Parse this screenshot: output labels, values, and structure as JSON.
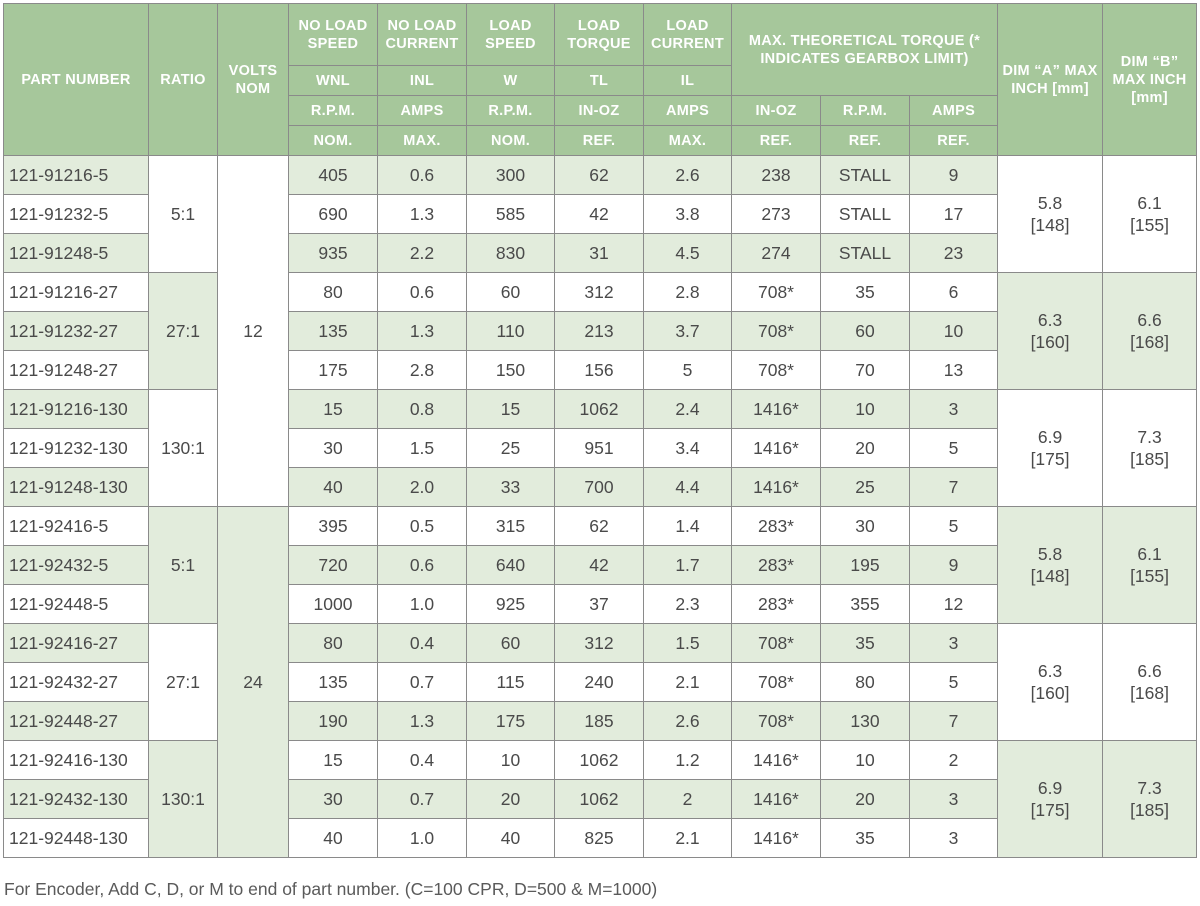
{
  "header": {
    "part_number": "PART NUMBER",
    "ratio": "RATIO",
    "volts": "VOLTS NOM",
    "no_load_speed": "NO LOAD SPEED",
    "no_load_current": "NO LOAD CURRENT",
    "load_speed": "LOAD SPEED",
    "load_torque": "LOAD TORQUE",
    "load_current": "LOAD CURRENT",
    "max_torque": "MAX. THEORETICAL TORQUE (* INDICATES GEARBOX LIMIT)",
    "dim_a": "DIM “A” MAX INCH [mm]",
    "dim_b": "DIM “B” MAX INCH [mm]",
    "row2": [
      "WNL",
      "INL",
      "W",
      "TL",
      "IL"
    ],
    "row3": [
      "R.P.M.",
      "AMPS",
      "R.P.M.",
      "IN-OZ",
      "AMPS",
      "IN-OZ",
      "R.P.M.",
      "AMPS"
    ],
    "row4": [
      "NOM.",
      "MAX.",
      "NOM.",
      "REF.",
      "MAX.",
      "REF.",
      "REF.",
      "REF."
    ]
  },
  "volts": [
    "12",
    "24"
  ],
  "groups": [
    {
      "ratio": "5:1",
      "dim_a": [
        "5.8",
        "[148]"
      ],
      "dim_b": [
        "6.1",
        "[155]"
      ],
      "rows": [
        [
          "121-91216-5",
          "405",
          "0.6",
          "300",
          "62",
          "2.6",
          "238",
          "STALL",
          "9"
        ],
        [
          "121-91232-5",
          "690",
          "1.3",
          "585",
          "42",
          "3.8",
          "273",
          "STALL",
          "17"
        ],
        [
          "121-91248-5",
          "935",
          "2.2",
          "830",
          "31",
          "4.5",
          "274",
          "STALL",
          "23"
        ]
      ]
    },
    {
      "ratio": "27:1",
      "dim_a": [
        "6.3",
        "[160]"
      ],
      "dim_b": [
        "6.6",
        "[168]"
      ],
      "rows": [
        [
          "121-91216-27",
          "80",
          "0.6",
          "60",
          "312",
          "2.8",
          "708*",
          "35",
          "6"
        ],
        [
          "121-91232-27",
          "135",
          "1.3",
          "110",
          "213",
          "3.7",
          "708*",
          "60",
          "10"
        ],
        [
          "121-91248-27",
          "175",
          "2.8",
          "150",
          "156",
          "5",
          "708*",
          "70",
          "13"
        ]
      ]
    },
    {
      "ratio": "130:1",
      "dim_a": [
        "6.9",
        "[175]"
      ],
      "dim_b": [
        "7.3",
        "[185]"
      ],
      "rows": [
        [
          "121-91216-130",
          "15",
          "0.8",
          "15",
          "1062",
          "2.4",
          "1416*",
          "10",
          "3"
        ],
        [
          "121-91232-130",
          "30",
          "1.5",
          "25",
          "951",
          "3.4",
          "1416*",
          "20",
          "5"
        ],
        [
          "121-91248-130",
          "40",
          "2.0",
          "33",
          "700",
          "4.4",
          "1416*",
          "25",
          "7"
        ]
      ]
    },
    {
      "ratio": "5:1",
      "dim_a": [
        "5.8",
        "[148]"
      ],
      "dim_b": [
        "6.1",
        "[155]"
      ],
      "rows": [
        [
          "121-92416-5",
          "395",
          "0.5",
          "315",
          "62",
          "1.4",
          "283*",
          "30",
          "5"
        ],
        [
          "121-92432-5",
          "720",
          "0.6",
          "640",
          "42",
          "1.7",
          "283*",
          "195",
          "9"
        ],
        [
          "121-92448-5",
          "1000",
          "1.0",
          "925",
          "37",
          "2.3",
          "283*",
          "355",
          "12"
        ]
      ]
    },
    {
      "ratio": "27:1",
      "dim_a": [
        "6.3",
        "[160]"
      ],
      "dim_b": [
        "6.6",
        "[168]"
      ],
      "rows": [
        [
          "121-92416-27",
          "80",
          "0.4",
          "60",
          "312",
          "1.5",
          "708*",
          "35",
          "3"
        ],
        [
          "121-92432-27",
          "135",
          "0.7",
          "115",
          "240",
          "2.1",
          "708*",
          "80",
          "5"
        ],
        [
          "121-92448-27",
          "190",
          "1.3",
          "175",
          "185",
          "2.6",
          "708*",
          "130",
          "7"
        ]
      ]
    },
    {
      "ratio": "130:1",
      "dim_a": [
        "6.9",
        "[175]"
      ],
      "dim_b": [
        "7.3",
        "[185]"
      ],
      "rows": [
        [
          "121-92416-130",
          "15",
          "0.4",
          "10",
          "1062",
          "1.2",
          "1416*",
          "10",
          "2"
        ],
        [
          "121-92432-130",
          "30",
          "0.7",
          "20",
          "1062",
          "2",
          "1416*",
          "20",
          "3"
        ],
        [
          "121-92448-130",
          "40",
          "1.0",
          "40",
          "825",
          "2.1",
          "1416*",
          "35",
          "3"
        ]
      ]
    }
  ],
  "footnote": "For Encoder, Add C, D, or M to end of part number. (C=100 CPR, D=500 & M=1000)",
  "colors": {
    "header_bg": "#a6c79b",
    "shade_bg": "#e2ecdc",
    "white_bg": "#ffffff",
    "text": "#4a4a4a",
    "border": "#8a8a8a"
  }
}
